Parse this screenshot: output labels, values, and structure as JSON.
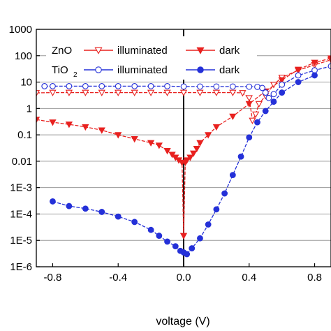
{
  "chart_data": {
    "type": "scatter",
    "xlabel": "voltage (V)",
    "ylabel": "",
    "xlim": [
      -0.9,
      0.9
    ],
    "ylim": [
      1e-06,
      1000
    ],
    "yscale": "log",
    "grid": "horizontal",
    "legend_position": "top-left",
    "x_ticks": [
      {
        "value": -0.8,
        "label": "-0.8"
      },
      {
        "value": -0.4,
        "label": "-0.4"
      },
      {
        "value": 0.0,
        "label": "0.0"
      },
      {
        "value": 0.4,
        "label": "0.4"
      },
      {
        "value": 0.8,
        "label": "0.8"
      }
    ],
    "y_ticks": [
      {
        "value": 1e-06,
        "label": "1E-6"
      },
      {
        "value": 1e-05,
        "label": "1E-5"
      },
      {
        "value": 0.0001,
        "label": "1E-4"
      },
      {
        "value": 0.001,
        "label": "1E-3"
      },
      {
        "value": 0.01,
        "label": "0.01"
      },
      {
        "value": 0.1,
        "label": "0.1"
      },
      {
        "value": 1,
        "label": "1"
      },
      {
        "value": 10,
        "label": "10"
      },
      {
        "value": 100,
        "label": "100"
      },
      {
        "value": 1000,
        "label": "1000"
      }
    ],
    "legend": [
      {
        "material": "ZnO",
        "label": "illuminated",
        "color": "#e8211f",
        "marker": "triangle-down-open"
      },
      {
        "label": "dark",
        "color": "#e8211f",
        "marker": "triangle-down-filled"
      },
      {
        "material": "TiO",
        "subscript": "2",
        "label": "illuminated",
        "color": "#2430d8",
        "marker": "circle-open"
      },
      {
        "label": "dark",
        "color": "#2430d8",
        "marker": "circle-filled"
      }
    ],
    "series": [
      {
        "name": "ZnO illuminated",
        "color": "#e8211f",
        "marker": "triangle-down-open",
        "x": [
          -0.9,
          -0.8,
          -0.7,
          -0.6,
          -0.5,
          -0.4,
          -0.3,
          -0.2,
          -0.1,
          0.0,
          0.1,
          0.2,
          0.3,
          0.36,
          0.4,
          0.42,
          0.44,
          0.46,
          0.5,
          0.55,
          0.6,
          0.7,
          0.8,
          0.9
        ],
        "y": [
          3.9,
          4.0,
          4.0,
          4.0,
          4.0,
          4.0,
          4.0,
          4.0,
          4.0,
          4.0,
          4.0,
          4.0,
          4.0,
          3.9,
          2.5,
          0.35,
          0.6,
          1.5,
          3.0,
          8.0,
          15,
          28,
          45,
          70
        ]
      },
      {
        "name": "ZnO dark",
        "color": "#e8211f",
        "marker": "triangle-down-filled",
        "x": [
          -0.9,
          -0.8,
          -0.7,
          -0.6,
          -0.5,
          -0.4,
          -0.3,
          -0.2,
          -0.15,
          -0.1,
          -0.07,
          -0.05,
          -0.03,
          -0.01,
          0.0,
          0.01,
          0.02,
          0.04,
          0.06,
          0.08,
          0.1,
          0.15,
          0.2,
          0.3,
          0.4,
          0.5,
          0.6,
          0.7,
          0.8,
          0.9
        ],
        "y": [
          0.38,
          0.3,
          0.25,
          0.2,
          0.15,
          0.1,
          0.07,
          0.05,
          0.04,
          0.025,
          0.018,
          0.014,
          0.011,
          0.009,
          1.5e-05,
          0.009,
          0.011,
          0.014,
          0.02,
          0.03,
          0.05,
          0.1,
          0.2,
          0.5,
          1.5,
          4.5,
          12,
          30,
          55,
          80
        ]
      },
      {
        "name": "TiO2 illuminated",
        "color": "#2430d8",
        "marker": "circle-open",
        "x": [
          -0.85,
          -0.8,
          -0.7,
          -0.6,
          -0.5,
          -0.4,
          -0.3,
          -0.2,
          -0.1,
          0.0,
          0.1,
          0.2,
          0.3,
          0.4,
          0.45,
          0.48,
          0.5,
          0.52,
          0.55,
          0.6,
          0.7,
          0.8,
          0.9
        ],
        "y": [
          7.0,
          7.0,
          7.0,
          7.0,
          7.0,
          7.0,
          7.0,
          7.0,
          7.0,
          6.8,
          6.8,
          6.8,
          6.8,
          6.7,
          6.6,
          6.0,
          4.0,
          2.5,
          3.5,
          8.0,
          18,
          28,
          40
        ]
      },
      {
        "name": "TiO2 dark",
        "color": "#2430d8",
        "marker": "circle-filled",
        "x": [
          -0.8,
          -0.7,
          -0.6,
          -0.5,
          -0.4,
          -0.3,
          -0.2,
          -0.15,
          -0.1,
          -0.05,
          -0.02,
          0.0,
          0.02,
          0.05,
          0.1,
          0.15,
          0.2,
          0.25,
          0.3,
          0.35,
          0.4,
          0.45,
          0.5,
          0.55,
          0.6,
          0.7,
          0.8
        ],
        "y": [
          0.0003,
          0.0002,
          0.00016,
          0.00012,
          8e-05,
          5e-05,
          2.5e-05,
          1.5e-05,
          9e-06,
          6e-06,
          4e-06,
          3.5e-06,
          3e-06,
          5e-06,
          1.2e-05,
          4e-05,
          0.00015,
          0.0006,
          0.003,
          0.015,
          0.08,
          0.3,
          0.8,
          1.8,
          4,
          10,
          18
        ]
      }
    ]
  }
}
